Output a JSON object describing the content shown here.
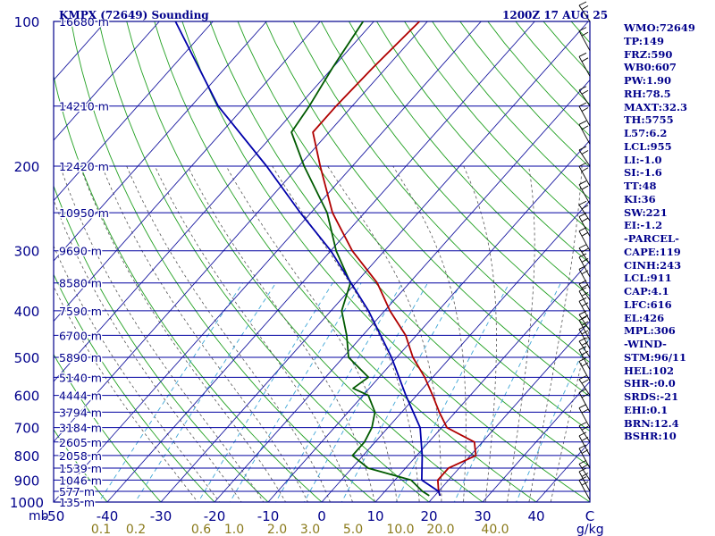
{
  "header": {
    "station": "KMPX (72649) Sounding",
    "valid": "1200Z 17 AUG 25"
  },
  "colors": {
    "frame": "#00008b",
    "isobar": "#0000a0",
    "isotherm": "#1a1aa0",
    "dry_adiabat": "#22a022",
    "moist_adiabat": "#555555",
    "mixing_ratio": "#3fa6d6",
    "temperature": "#b00000",
    "dewpoint": "#005a00",
    "parcel": "#0000aa",
    "wind_barb": "#000000",
    "mixing_label": "#8a7a1a",
    "text": "#00008b"
  },
  "indices": [
    "WMO:72649",
    "TP:149",
    "FRZ:590",
    "WB0:607",
    "PW:1.90",
    "RH:78.5",
    "MAXT:32.3",
    "TH:5755",
    "L57:6.2",
    "LCL:955",
    "LI:-1.0",
    "SI:-1.6",
    "TT:48",
    "KI:36",
    "SW:221",
    "EI:-1.2",
    "-PARCEL-",
    "CAPE:119",
    "CINH:243",
    "LCL:911",
    "CAP:4.1",
    "LFC:616",
    "EL:426",
    "MPL:306",
    "-WIND-",
    "STM:96/11",
    "HEL:102",
    "SHR-:0.0",
    "SRDS:-21",
    "EHI:0.1",
    "BRN:12.4",
    "BSHR:10"
  ],
  "chart_data": {
    "type": "skew-t log-p",
    "pressure_unit": "mb",
    "pressure_range": [
      1000,
      100
    ],
    "temperature_range_bottom": [
      -50,
      50
    ],
    "pressure_ticks": [
      100,
      200,
      300,
      400,
      500,
      600,
      700,
      800,
      900,
      1000
    ],
    "pressure_tick_labels": [
      "100",
      "200",
      "300",
      "400",
      "500",
      "600",
      "700",
      "800",
      "900",
      "1000"
    ],
    "pressure_axis_label": "mb",
    "temperature_ticks": [
      -50,
      -40,
      -30,
      -20,
      -10,
      0,
      10,
      20,
      30,
      40,
      50
    ],
    "temperature_tick_labels": [
      "-50",
      "-40",
      "-30",
      "-20",
      "-10",
      "0",
      "10",
      "20",
      "30",
      "40",
      "C"
    ],
    "mixing_ratio_labels": [
      "0.1",
      "0.2",
      "0.6",
      "1.0",
      "2.0",
      "3.0",
      "5.0",
      "10.0",
      "20.0",
      "40.0"
    ],
    "mixing_ratio_unit": "g/kg",
    "height_labels": [
      {
        "p": 100,
        "text": "16680 m"
      },
      {
        "p": 150,
        "text": "14210 m"
      },
      {
        "p": 200,
        "text": "12420 m"
      },
      {
        "p": 250,
        "text": "10950 m"
      },
      {
        "p": 300,
        "text": "9690 m"
      },
      {
        "p": 350,
        "text": "8580 m"
      },
      {
        "p": 400,
        "text": "7590 m"
      },
      {
        "p": 450,
        "text": "6700 m"
      },
      {
        "p": 500,
        "text": "5890 m"
      },
      {
        "p": 550,
        "text": "5140 m"
      },
      {
        "p": 600,
        "text": "4444 m"
      },
      {
        "p": 650,
        "text": "3794 m"
      },
      {
        "p": 700,
        "text": "3184 m"
      },
      {
        "p": 750,
        "text": "2605 m"
      },
      {
        "p": 800,
        "text": "2058 m"
      },
      {
        "p": 850,
        "text": "1539 m"
      },
      {
        "p": 900,
        "text": "1046 m"
      },
      {
        "p": 950,
        "text": "577 m"
      },
      {
        "p": 1000,
        "text": "135 m"
      }
    ],
    "series": [
      {
        "key": "temperature",
        "profile": [
          [
            100,
            -61.5
          ],
          [
            125,
            -62.5
          ],
          [
            150,
            -63
          ],
          [
            170,
            -63
          ],
          [
            200,
            -56
          ],
          [
            250,
            -46
          ],
          [
            300,
            -36
          ],
          [
            350,
            -26
          ],
          [
            400,
            -19
          ],
          [
            450,
            -12
          ],
          [
            500,
            -7
          ],
          [
            550,
            -1.5
          ],
          [
            600,
            3
          ],
          [
            650,
            7
          ],
          [
            700,
            11
          ],
          [
            750,
            18.5
          ],
          [
            800,
            21
          ],
          [
            850,
            18
          ],
          [
            900,
            18
          ],
          [
            950,
            20
          ],
          [
            970,
            21
          ]
        ]
      },
      {
        "key": "dewpoint",
        "profile": [
          [
            100,
            -72
          ],
          [
            125,
            -70
          ],
          [
            150,
            -68
          ],
          [
            170,
            -67
          ],
          [
            200,
            -59
          ],
          [
            250,
            -47
          ],
          [
            300,
            -39
          ],
          [
            350,
            -31
          ],
          [
            400,
            -28
          ],
          [
            450,
            -23
          ],
          [
            500,
            -19
          ],
          [
            550,
            -12
          ],
          [
            580,
            -13
          ],
          [
            600,
            -9
          ],
          [
            650,
            -5
          ],
          [
            700,
            -3
          ],
          [
            750,
            -2
          ],
          [
            800,
            -2
          ],
          [
            850,
            3
          ],
          [
            900,
            13
          ],
          [
            950,
            17
          ],
          [
            970,
            19
          ]
        ]
      },
      {
        "key": "parcel",
        "profile": [
          [
            100,
            -107
          ],
          [
            150,
            -85
          ],
          [
            200,
            -66
          ],
          [
            250,
            -52
          ],
          [
            300,
            -40
          ],
          [
            400,
            -23
          ],
          [
            500,
            -11
          ],
          [
            600,
            -2
          ],
          [
            700,
            6
          ],
          [
            800,
            11
          ],
          [
            900,
            15
          ],
          [
            950,
            20
          ],
          [
            970,
            21
          ]
        ]
      }
    ],
    "wind_profile_p": [
      100,
      115,
      130,
      150,
      165,
      180,
      200,
      220,
      240,
      260,
      280,
      300,
      320,
      340,
      360,
      380,
      400,
      420,
      440,
      460,
      480,
      500,
      530,
      560,
      600,
      650,
      700,
      750,
      800,
      850,
      900,
      950,
      990
    ]
  }
}
